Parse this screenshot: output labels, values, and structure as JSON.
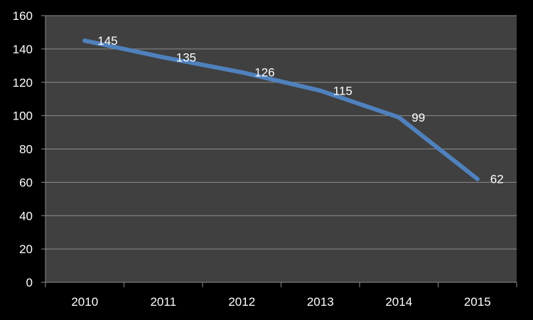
{
  "chart_data": {
    "type": "line",
    "title": "",
    "xlabel": "",
    "ylabel": "",
    "categories": [
      "2010",
      "2011",
      "2012",
      "2013",
      "2014",
      "2015"
    ],
    "series": [
      {
        "values": [
          145,
          135,
          126,
          115,
          99,
          62
        ]
      }
    ],
    "ylim": [
      0,
      160
    ],
    "yticks": [
      0,
      20,
      40,
      60,
      80,
      100,
      120,
      140,
      160
    ],
    "grid": true,
    "data_labels": true,
    "legend": "none",
    "colors": {
      "background": "#000000",
      "plot_area": "#404040",
      "gridline": "#8c8c8c",
      "line": "#4f81bd",
      "text": "#ffffff"
    }
  }
}
